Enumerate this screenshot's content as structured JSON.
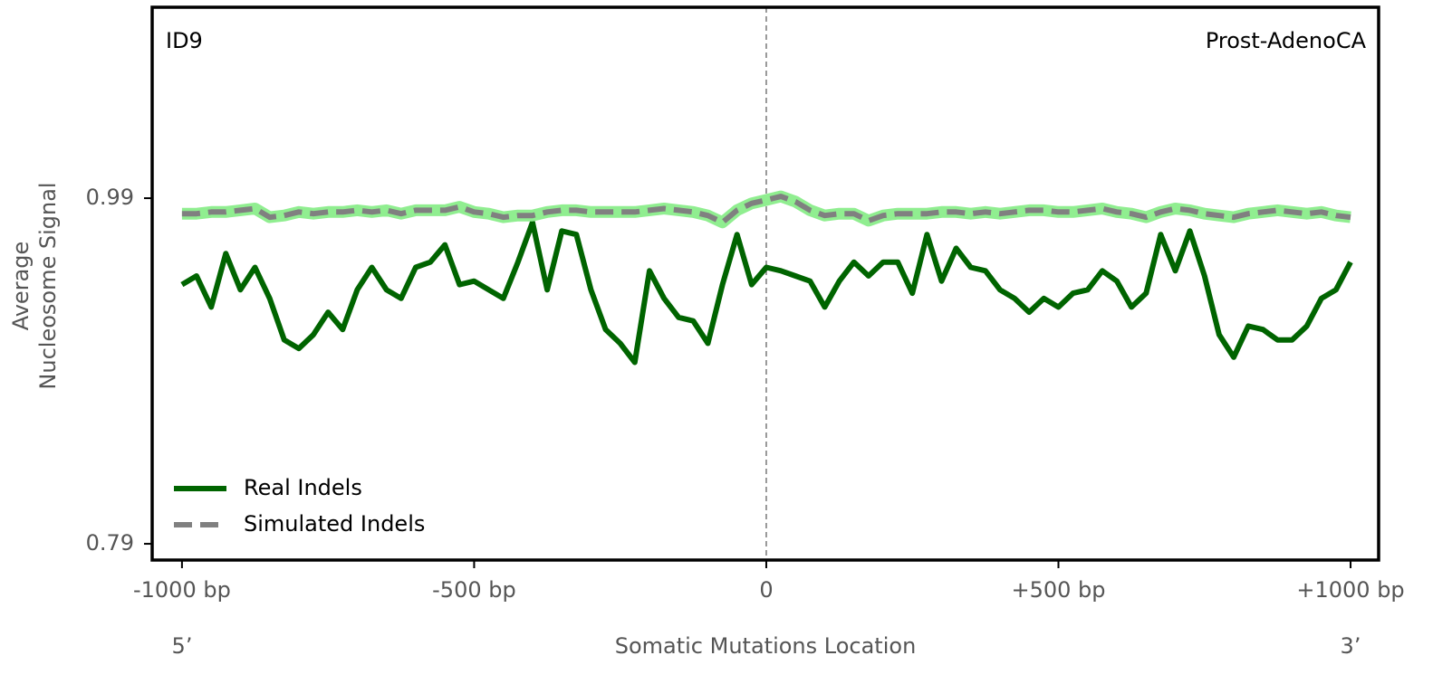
{
  "chart_data": {
    "type": "line",
    "annotations": {
      "left": "ID9",
      "right": "Prost-AdenoCA",
      "start": "5’",
      "end": "3’"
    },
    "xlabel": "Somatic Mutations Location",
    "ylabel": [
      "Average",
      "Nucleosome Signal"
    ],
    "xlim": [
      -1051,
      1048
    ],
    "ylim": [
      0.7806,
      1.1005
    ],
    "xticks": [
      {
        "value": -1000,
        "label": "-1000 bp"
      },
      {
        "value": -500,
        "label": "-500 bp"
      },
      0,
      {
        "value": 500,
        "label": "+500 bp"
      },
      {
        "value": 1000,
        "label": "+1000 bp"
      }
    ],
    "yticks": [
      0.79,
      0.99
    ],
    "vline": 0,
    "legend": "lower left",
    "x": [
      -1000,
      -975,
      -950,
      -925,
      -900,
      -875,
      -850,
      -825,
      -800,
      -775,
      -750,
      -725,
      -700,
      -675,
      -650,
      -625,
      -600,
      -575,
      -550,
      -525,
      -500,
      -475,
      -450,
      -425,
      -400,
      -375,
      -350,
      -325,
      -300,
      -275,
      -250,
      -225,
      -200,
      -175,
      -150,
      -125,
      -100,
      -75,
      -50,
      -25,
      0,
      25,
      50,
      75,
      100,
      125,
      150,
      175,
      200,
      225,
      250,
      275,
      300,
      325,
      350,
      375,
      400,
      425,
      450,
      475,
      500,
      525,
      550,
      575,
      600,
      625,
      650,
      675,
      700,
      725,
      750,
      775,
      800,
      825,
      850,
      875,
      900,
      925,
      950,
      975,
      1000
    ],
    "series": [
      {
        "name": "Real Indels",
        "color": "#006400",
        "dashed": false,
        "values": [
          0.94,
          0.945,
          0.927,
          0.958,
          0.937,
          0.95,
          0.932,
          0.908,
          0.903,
          0.911,
          0.924,
          0.914,
          0.937,
          0.95,
          0.937,
          0.932,
          0.95,
          0.953,
          0.963,
          0.94,
          0.942,
          0.937,
          0.932,
          0.953,
          0.976,
          0.937,
          0.971,
          0.969,
          0.937,
          0.914,
          0.906,
          0.895,
          0.948,
          0.932,
          0.921,
          0.919,
          0.906,
          0.94,
          0.969,
          0.94,
          0.95,
          0.948,
          0.945,
          0.942,
          0.927,
          0.942,
          0.953,
          0.945,
          0.953,
          0.953,
          0.935,
          0.969,
          0.942,
          0.961,
          0.95,
          0.948,
          0.937,
          0.932,
          0.924,
          0.932,
          0.927,
          0.935,
          0.937,
          0.948,
          0.942,
          0.927,
          0.935,
          0.969,
          0.948,
          0.971,
          0.945,
          0.911,
          0.898,
          0.916,
          0.914,
          0.908,
          0.908,
          0.916,
          0.932,
          0.937,
          0.953
        ]
      },
      {
        "name": "Simulated Indels",
        "color": "#808080",
        "dashed": true,
        "band_color": "#90ee90",
        "values": [
          0.981,
          0.981,
          0.982,
          0.982,
          0.983,
          0.984,
          0.979,
          0.98,
          0.982,
          0.981,
          0.982,
          0.982,
          0.983,
          0.982,
          0.983,
          0.981,
          0.983,
          0.983,
          0.983,
          0.985,
          0.982,
          0.981,
          0.979,
          0.98,
          0.98,
          0.982,
          0.983,
          0.983,
          0.982,
          0.982,
          0.982,
          0.982,
          0.983,
          0.984,
          0.983,
          0.982,
          0.98,
          0.976,
          0.983,
          0.987,
          0.989,
          0.991,
          0.988,
          0.983,
          0.98,
          0.981,
          0.981,
          0.977,
          0.98,
          0.981,
          0.981,
          0.981,
          0.982,
          0.982,
          0.981,
          0.982,
          0.981,
          0.982,
          0.983,
          0.983,
          0.982,
          0.982,
          0.983,
          0.984,
          0.982,
          0.981,
          0.979,
          0.982,
          0.984,
          0.983,
          0.981,
          0.98,
          0.979,
          0.981,
          0.982,
          0.983,
          0.982,
          0.981,
          0.982,
          0.98,
          0.979
        ]
      }
    ]
  }
}
